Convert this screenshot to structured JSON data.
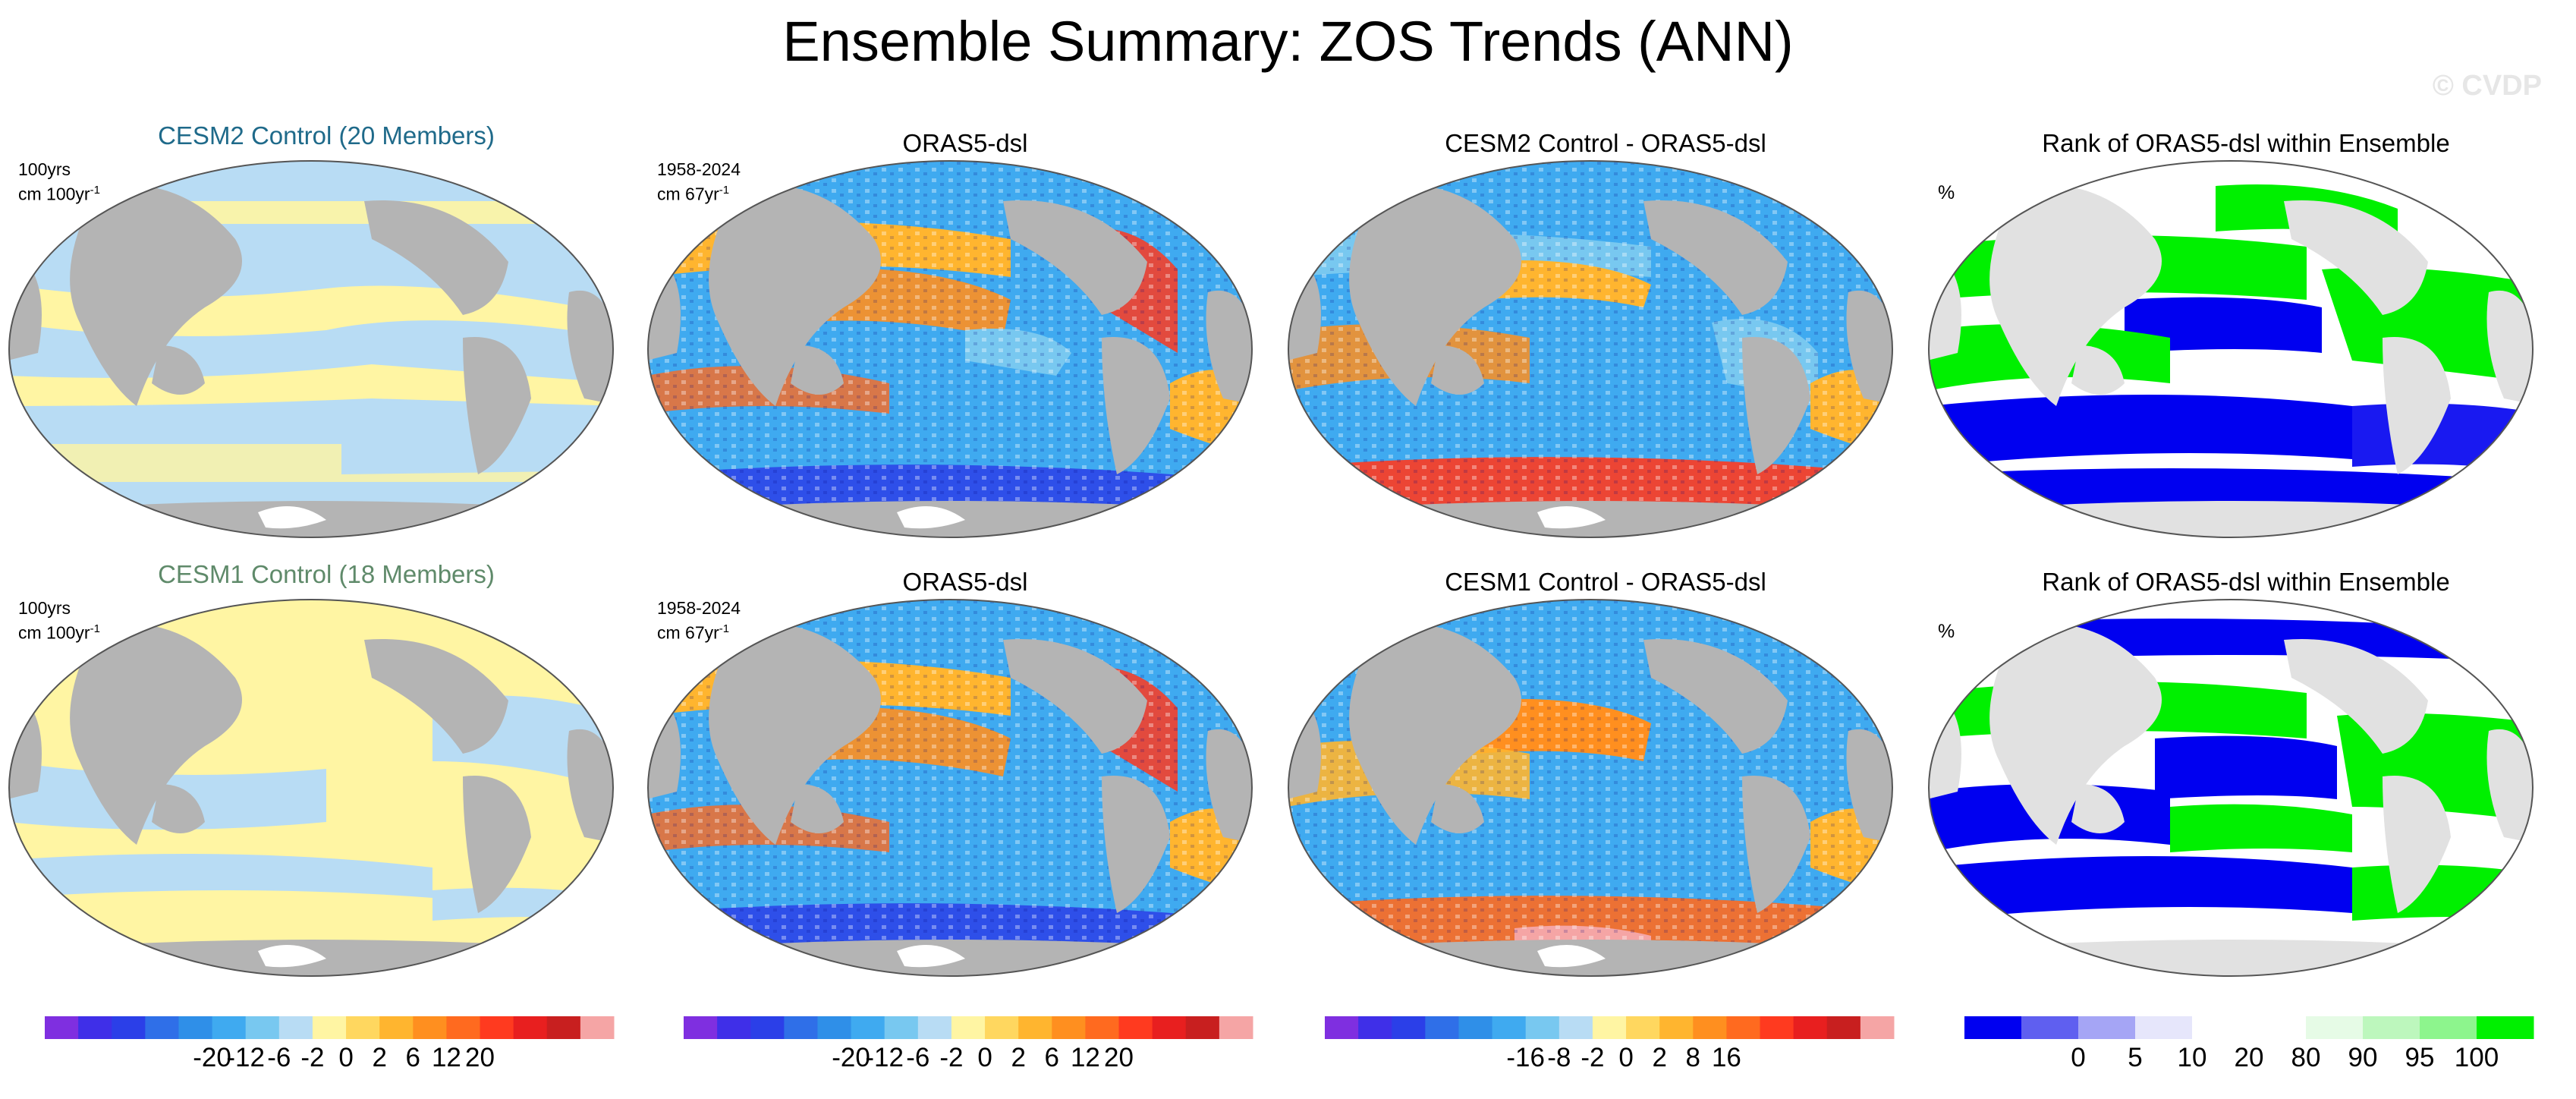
{
  "figure": {
    "title": "Ensemble Summary: ZOS Trends (ANN)",
    "watermark": "© CVDP"
  },
  "colors": {
    "ocean_blue": "#b8dcf4",
    "ocean_yellow": "#fff5a3",
    "land": "#b4b4b4",
    "land_rank": "#e1e1e1",
    "rank_green": "#00f000",
    "rank_blue": "#0000f0",
    "title_cesm2": "#1f6a8a",
    "title_cesm1": "#5f8a6a"
  },
  "rows": [
    {
      "panels": [
        {
          "title": "CESM2 Control (20 Members)",
          "line1": "100yrs",
          "unit": "cm 100yr",
          "sup": "-1",
          "kind": "ensemble"
        },
        {
          "title": "ORAS5-dsl",
          "line1": "1958-2024",
          "unit": "cm 67yr",
          "sup": "-1",
          "kind": "obs"
        },
        {
          "title": "CESM2 Control - ORAS5-dsl",
          "kind": "diff"
        },
        {
          "title": "Rank of ORAS5-dsl within Ensemble",
          "unit": "%",
          "kind": "rank"
        }
      ]
    },
    {
      "panels": [
        {
          "title": "CESM1 Control (18 Members)",
          "line1": "100yrs",
          "unit": "cm 100yr",
          "sup": "-1",
          "kind": "ensemble"
        },
        {
          "title": "ORAS5-dsl",
          "line1": "1958-2024",
          "unit": "cm 67yr",
          "sup": "-1",
          "kind": "obs"
        },
        {
          "title": "CESM1 Control - ORAS5-dsl",
          "kind": "diff"
        },
        {
          "title": "Rank of ORAS5-dsl within Ensemble",
          "unit": "%",
          "kind": "rank"
        }
      ]
    }
  ],
  "colorbars": [
    {
      "colors": [
        "#7f2fe0",
        "#3f2fe8",
        "#2b3fe8",
        "#2f6fe8",
        "#2f8fe8",
        "#3faaf0",
        "#78c8f0",
        "#b8dcf4",
        "#fff5a3",
        "#ffd75f",
        "#ffb52f",
        "#ff8f1f",
        "#ff6a1f",
        "#ff3a1f",
        "#e81f1f",
        "#c81f1f",
        "#f5a5a5"
      ],
      "labels": [
        "-20",
        "-12",
        "-6",
        "-2",
        "0",
        "2",
        "6",
        "12",
        "20"
      ]
    },
    {
      "colors": [
        "#7f2fe0",
        "#3f2fe8",
        "#2b3fe8",
        "#2f6fe8",
        "#2f8fe8",
        "#3faaf0",
        "#78c8f0",
        "#b8dcf4",
        "#fff5a3",
        "#ffd75f",
        "#ffb52f",
        "#ff8f1f",
        "#ff6a1f",
        "#ff3a1f",
        "#e81f1f",
        "#c81f1f",
        "#f5a5a5"
      ],
      "labels": [
        "-20",
        "-12",
        "-6",
        "-2",
        "0",
        "2",
        "6",
        "12",
        "20"
      ]
    },
    {
      "colors": [
        "#7f2fe0",
        "#3f2fe8",
        "#2b3fe8",
        "#2f6fe8",
        "#2f8fe8",
        "#3faaf0",
        "#78c8f0",
        "#b8dcf4",
        "#fff5a3",
        "#ffd75f",
        "#ffb52f",
        "#ff8f1f",
        "#ff6a1f",
        "#ff3a1f",
        "#e81f1f",
        "#c81f1f",
        "#f5a5a5"
      ],
      "labels": [
        "-16",
        "-8",
        "-2",
        "0",
        "2",
        "8",
        "16"
      ]
    },
    {
      "colors": [
        "#0000f0",
        "#5f5ff0",
        "#a5a5f5",
        "#e6e6fb",
        "#ffffff",
        "#ffffff",
        "#e6fbe6",
        "#bdf7bd",
        "#8df58d",
        "#00f000"
      ],
      "labels": [
        "0",
        "5",
        "10",
        "20",
        "80",
        "90",
        "95",
        "100"
      ]
    }
  ]
}
